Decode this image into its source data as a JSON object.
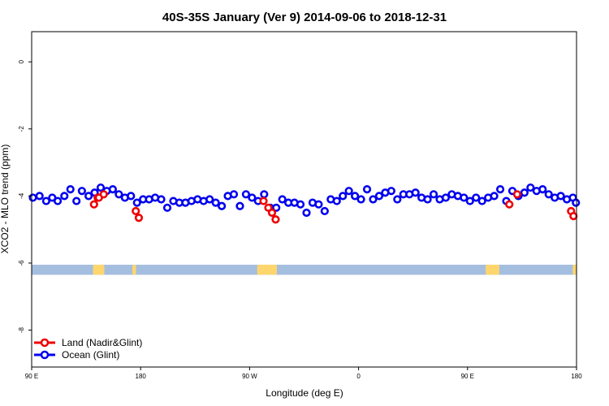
{
  "colors": {
    "land": "#ee0000",
    "ocean": "#0000ee",
    "band": "#a4bedf",
    "land_patch": "#ffd66e"
  },
  "chart_data": {
    "type": "scatter",
    "title": "40S-35S January (Ver 9)   2014-09-06 to 2018-12-31",
    "xlabel": "Longitude (deg E)",
    "ylabel": "XCO2 - MLO trend (ppm)",
    "xlim": [
      90,
      450
    ],
    "ylim": [
      -9.1,
      0.9
    ],
    "grid": false,
    "legend_position": "bottom-left",
    "x_ticks": [
      {
        "value": 90,
        "label": "90 E"
      },
      {
        "value": 162,
        "label": "180"
      },
      {
        "value": 234,
        "label": "90 W"
      },
      {
        "value": 306,
        "label": "0"
      },
      {
        "value": 378,
        "label": "90 E"
      },
      {
        "value": 450,
        "label": "180"
      }
    ],
    "y_ticks": [
      {
        "value": 0,
        "label": "0"
      },
      {
        "value": -2,
        "label": "-2"
      },
      {
        "value": -4,
        "label": "-4"
      },
      {
        "value": -6,
        "label": "-6"
      },
      {
        "value": -8,
        "label": "-8"
      }
    ],
    "land_band": {
      "y_top": -6.05,
      "y_bottom": -6.35,
      "patches": [
        [
          130.5,
          138
        ],
        [
          156.5,
          159
        ],
        [
          239,
          252
        ],
        [
          390,
          399
        ],
        [
          447.5,
          450
        ]
      ]
    },
    "series": [
      {
        "name": "Land (Nadir&Glint)",
        "color": "#ee0000",
        "x": [
          131.2,
          133.6,
          134.4,
          137.6,
          158.8,
          160.8,
          243.2,
          246.4,
          248.8,
          251.2,
          405.6,
          410.8,
          446.4,
          448.0
        ],
        "y": [
          -4.25,
          -4.05,
          -4.05,
          -3.95,
          -4.45,
          -4.65,
          -4.15,
          -4.35,
          -4.5,
          -4.7,
          -4.25,
          -3.95,
          -4.45,
          -4.6
        ]
      },
      {
        "name": "Ocean (Glint)",
        "color": "#0000ee",
        "x": [
          90.8,
          95.2,
          99.6,
          103.6,
          107.2,
          111.6,
          115.6,
          119.6,
          123.2,
          127.6,
          131.6,
          135.6,
          139.6,
          143.6,
          147.6,
          151.6,
          155.6,
          159.6,
          163.6,
          167.6,
          171.6,
          175.6,
          179.6,
          183.6,
          187.6,
          191.6,
          195.6,
          199.6,
          203.6,
          207.6,
          211.6,
          215.6,
          219.6,
          223.6,
          227.6,
          231.6,
          235.6,
          239.6,
          243.6,
          247.6,
          251.6,
          255.6,
          259.6,
          263.6,
          267.6,
          271.6,
          275.6,
          279.6,
          283.6,
          287.6,
          291.6,
          295.6,
          299.6,
          303.6,
          307.6,
          311.6,
          315.6,
          319.6,
          323.6,
          327.6,
          331.6,
          335.6,
          339.6,
          343.6,
          347.6,
          351.6,
          355.6,
          359.6,
          363.6,
          367.6,
          371.6,
          375.6,
          379.6,
          383.6,
          387.6,
          391.6,
          395.6,
          399.6,
          403.6,
          407.6,
          411.6,
          415.6,
          419.6,
          423.6,
          427.6,
          431.6,
          435.6,
          439.6,
          443.6,
          447.6,
          449.6
        ],
        "y": [
          -4.05,
          -4.0,
          -4.15,
          -4.05,
          -4.15,
          -4.0,
          -3.8,
          -4.15,
          -3.85,
          -4.0,
          -3.9,
          -3.75,
          -3.85,
          -3.8,
          -3.95,
          -4.05,
          -4.0,
          -4.2,
          -4.1,
          -4.1,
          -4.05,
          -4.1,
          -4.35,
          -4.15,
          -4.2,
          -4.2,
          -4.15,
          -4.1,
          -4.15,
          -4.1,
          -4.2,
          -4.3,
          -4.0,
          -3.95,
          -4.3,
          -3.95,
          -4.05,
          -4.15,
          -3.95,
          -4.35,
          -4.35,
          -4.1,
          -4.2,
          -4.2,
          -4.25,
          -4.5,
          -4.2,
          -4.25,
          -4.45,
          -4.1,
          -4.15,
          -4.0,
          -3.85,
          -4.0,
          -4.1,
          -3.8,
          -4.1,
          -4.0,
          -3.9,
          -3.85,
          -4.1,
          -3.95,
          -3.95,
          -3.9,
          -4.05,
          -4.1,
          -3.95,
          -4.1,
          -4.05,
          -3.95,
          -4.0,
          -4.05,
          -4.15,
          -4.05,
          -4.15,
          -4.05,
          -4.0,
          -3.8,
          -4.15,
          -3.85,
          -4.0,
          -3.9,
          -3.75,
          -3.85,
          -3.8,
          -3.95,
          -4.05,
          -4.0,
          -4.1,
          -4.05,
          -4.2
        ]
      }
    ]
  }
}
